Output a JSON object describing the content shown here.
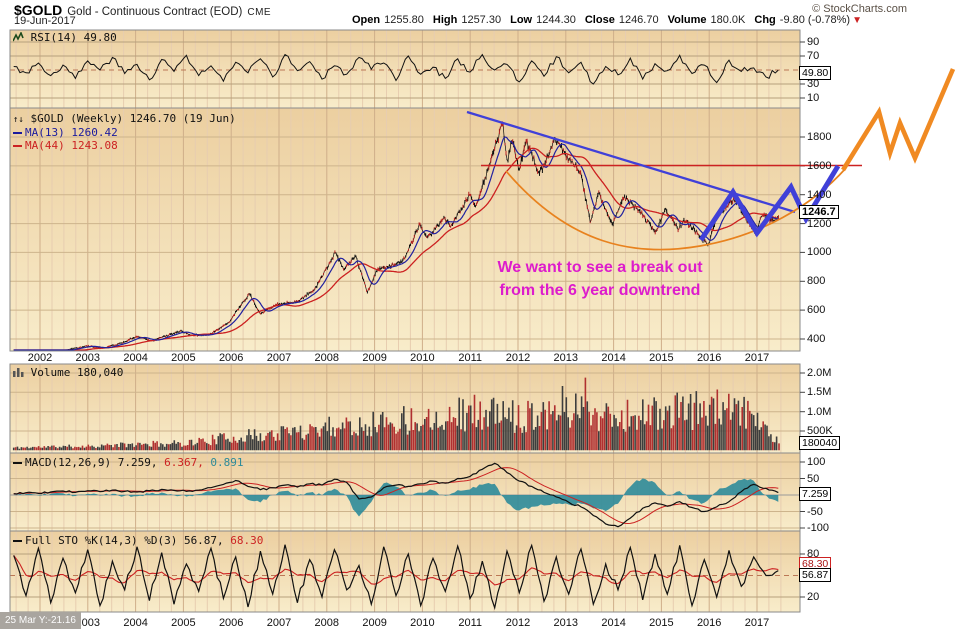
{
  "header": {
    "symbol": "$GOLD",
    "description": "Gold - Continuous Contract (EOD)",
    "exchange": "CME",
    "copyright": "© StockCharts.com",
    "date": "19-Jun-2017",
    "quote": [
      {
        "label": "Open",
        "value": "1255.80"
      },
      {
        "label": "High",
        "value": "1257.30"
      },
      {
        "label": "Low",
        "value": "1244.30"
      },
      {
        "label": "Close",
        "value": "1246.70"
      },
      {
        "label": "Volume",
        "value": "180.0K"
      },
      {
        "label": "Chg",
        "value": "-9.80 (-0.78%)"
      }
    ],
    "chg_arrow": "▼"
  },
  "panels": {
    "rsi": {
      "label": "RSI(14) 49.80",
      "current": "49.80",
      "ticks": [
        {
          "v": 90,
          "label": "90"
        },
        {
          "v": 70,
          "label": "70"
        },
        {
          "v": 30,
          "label": "30"
        },
        {
          "v": 10,
          "label": "10"
        }
      ]
    },
    "price": {
      "legend_symbol": "$GOLD (Weekly) 1246.70 (19 Jun)",
      "legend_ma13": "MA(13) 1260.42",
      "legend_ma44": "MA(44) 1243.08",
      "current": "1246.7",
      "ticks": [
        {
          "v": 1800,
          "label": "1800"
        },
        {
          "v": 1600,
          "label": "1600"
        },
        {
          "v": 1400,
          "label": "1400"
        },
        {
          "v": 1200,
          "label": "1200"
        },
        {
          "v": 1000,
          "label": "1000"
        },
        {
          "v": 800,
          "label": "800"
        },
        {
          "v": 600,
          "label": "600"
        },
        {
          "v": 400,
          "label": "400"
        }
      ]
    },
    "volume": {
      "label": "Volume 180,040",
      "current": "180040",
      "ticks": [
        {
          "v": 2000,
          "label": "2.0M"
        },
        {
          "v": 1500,
          "label": "1.5M"
        },
        {
          "v": 1000,
          "label": "1.0M"
        },
        {
          "v": 500,
          "label": "500K"
        }
      ]
    },
    "macd": {
      "label_main": "MACD(12,26,9) 7.259,",
      "label_signal": " 6.367,",
      "label_hist": " 0.891",
      "current": "7.259",
      "ticks": [
        {
          "v": 100,
          "label": "100"
        },
        {
          "v": 50,
          "label": "50"
        },
        {
          "v": -50,
          "label": "-50"
        },
        {
          "v": -100,
          "label": "-100"
        }
      ]
    },
    "sto": {
      "label_main": "Full STO %K(14,3) %D(3) 56.87,",
      "label_signal": " 68.30",
      "current_d": "68.30",
      "current_k": "56.87",
      "ticks": [
        {
          "v": 80,
          "label": "80"
        },
        {
          "v": 20,
          "label": "20"
        }
      ]
    }
  },
  "x_axis": {
    "top": [
      "2002",
      "2003",
      "2004",
      "2005",
      "2006",
      "2007",
      "2008",
      "2009",
      "2010",
      "2011",
      "2012",
      "2013",
      "2014",
      "2015",
      "2016",
      "2017"
    ],
    "bottom": [
      "2003",
      "2004",
      "2005",
      "2006",
      "2007",
      "2008",
      "2009",
      "2010",
      "2011",
      "2012",
      "2013",
      "2014",
      "2015",
      "2016",
      "2017"
    ]
  },
  "annotation": {
    "line1": "We want to see a break out",
    "line2": "from the 6 year downtrend",
    "text_color": "#dd1ccc",
    "trend_color": "#4040d8",
    "projection_color": "#f08a22",
    "resistance_color": "#cc2222"
  },
  "tooltip": {
    "text": "25 Mar Y:-21.16"
  },
  "chart_data": [
    {
      "name": "gold_price",
      "type": "line",
      "timeframe": "weekly",
      "title": "$GOLD (Weekly)",
      "x_range": [
        2001.45,
        2017.46
      ],
      "ylim": [
        300,
        2000
      ],
      "close": 1246.7,
      "ma13": 1260.42,
      "ma44": 1243.08,
      "anchors": [
        [
          2001.45,
          300
        ],
        [
          2002.0,
          308
        ],
        [
          2002.5,
          318
        ],
        [
          2003.0,
          352
        ],
        [
          2003.3,
          335
        ],
        [
          2003.7,
          372
        ],
        [
          2004.0,
          416
        ],
        [
          2004.35,
          388
        ],
        [
          2004.95,
          455
        ],
        [
          2005.15,
          425
        ],
        [
          2005.55,
          432
        ],
        [
          2005.95,
          515
        ],
        [
          2006.38,
          715
        ],
        [
          2006.6,
          578
        ],
        [
          2006.95,
          638
        ],
        [
          2007.4,
          662
        ],
        [
          2007.75,
          745
        ],
        [
          2008.18,
          1002
        ],
        [
          2008.35,
          885
        ],
        [
          2008.6,
          978
        ],
        [
          2008.85,
          722
        ],
        [
          2009.05,
          880
        ],
        [
          2009.3,
          905
        ],
        [
          2009.6,
          945
        ],
        [
          2009.95,
          1195
        ],
        [
          2010.1,
          1095
        ],
        [
          2010.45,
          1242
        ],
        [
          2010.6,
          1185
        ],
        [
          2011.0,
          1405
        ],
        [
          2011.12,
          1320
        ],
        [
          2011.68,
          1895
        ],
        [
          2011.78,
          1625
        ],
        [
          2011.88,
          1788
        ],
        [
          2012.02,
          1572
        ],
        [
          2012.18,
          1775
        ],
        [
          2012.45,
          1545
        ],
        [
          2012.78,
          1785
        ],
        [
          2013.05,
          1655
        ],
        [
          2013.3,
          1565
        ],
        [
          2013.52,
          1205
        ],
        [
          2013.68,
          1415
        ],
        [
          2013.98,
          1192
        ],
        [
          2014.2,
          1385
        ],
        [
          2014.55,
          1285
        ],
        [
          2014.88,
          1135
        ],
        [
          2015.08,
          1298
        ],
        [
          2015.35,
          1165
        ],
        [
          2015.5,
          1225
        ],
        [
          2015.98,
          1048
        ],
        [
          2016.15,
          1240
        ],
        [
          2016.52,
          1372
        ],
        [
          2016.82,
          1215
        ],
        [
          2016.97,
          1128
        ],
        [
          2017.12,
          1262
        ],
        [
          2017.3,
          1222
        ],
        [
          2017.46,
          1246.7
        ]
      ]
    },
    {
      "name": "rsi",
      "type": "line",
      "ylim": [
        0,
        100
      ],
      "overbought": 70,
      "oversold": 30,
      "x_start": 2001.45,
      "x_step": 0.258,
      "last": 49.8,
      "values": [
        55,
        46,
        60,
        42,
        57,
        38,
        63,
        50,
        68,
        45,
        58,
        36,
        65,
        48,
        71,
        42,
        56,
        34,
        61,
        46,
        66,
        40,
        72,
        49,
        62,
        37,
        56,
        44,
        68,
        51,
        60,
        35,
        70,
        44,
        54,
        38,
        66,
        47,
        72,
        50,
        58,
        33,
        63,
        41,
        69,
        46,
        61,
        30,
        55,
        43,
        67,
        37,
        59,
        49,
        71,
        45,
        57,
        32,
        64,
        48,
        53,
        40,
        49.8
      ]
    },
    {
      "name": "volume",
      "type": "bar",
      "unit": "K",
      "ylim": [
        0,
        2000
      ],
      "last": 180.04,
      "spike": [
        2013.42,
        1880
      ],
      "anchors": [
        [
          2001.45,
          70
        ],
        [
          2002,
          85
        ],
        [
          2003,
          110
        ],
        [
          2004,
          150
        ],
        [
          2005,
          185
        ],
        [
          2006,
          330
        ],
        [
          2007,
          430
        ],
        [
          2008,
          620
        ],
        [
          2009,
          710
        ],
        [
          2010,
          830
        ],
        [
          2011,
          990
        ],
        [
          2012,
          880
        ],
        [
          2013,
          1150
        ],
        [
          2014,
          880
        ],
        [
          2015,
          950
        ],
        [
          2016,
          1090
        ],
        [
          2017,
          870
        ],
        [
          2017.46,
          180
        ]
      ]
    },
    {
      "name": "macd",
      "type": "line",
      "ylim": [
        -120,
        120
      ],
      "x_start": 2001.45,
      "x_step": 0.258,
      "last": 7.259,
      "signal_last": 6.367,
      "hist_last": 0.891,
      "values": [
        4,
        7,
        5,
        9,
        12,
        8,
        13,
        10,
        15,
        11,
        9,
        13,
        17,
        14,
        11,
        15,
        22,
        32,
        44,
        26,
        16,
        22,
        30,
        24,
        34,
        30,
        48,
        38,
        -12,
        -6,
        22,
        30,
        26,
        34,
        42,
        36,
        50,
        56,
        78,
        96,
        68,
        42,
        26,
        8,
        -6,
        -22,
        -36,
        -62,
        -88,
        -96,
        -70,
        -40,
        -24,
        -34,
        -20,
        -38,
        -50,
        -36,
        -20,
        10,
        32,
        20,
        7.3
      ]
    },
    {
      "name": "full_sto",
      "type": "line",
      "ylim": [
        0,
        100
      ],
      "x_start": 2001.45,
      "x_step": 0.258,
      "k_last": 56.87,
      "d_last": 68.3,
      "k_values": [
        78,
        22,
        88,
        12,
        74,
        26,
        86,
        8,
        70,
        30,
        90,
        15,
        82,
        10,
        66,
        28,
        88,
        18,
        76,
        6,
        84,
        24,
        93,
        12,
        72,
        20,
        86,
        30,
        64,
        10,
        90,
        22,
        80,
        8,
        74,
        28,
        91,
        18,
        70,
        5,
        84,
        26,
        92,
        14,
        76,
        24,
        87,
        10,
        66,
        30,
        89,
        16,
        80,
        24,
        92,
        8,
        72,
        20,
        85,
        35,
        76,
        50,
        56.9
      ]
    }
  ]
}
